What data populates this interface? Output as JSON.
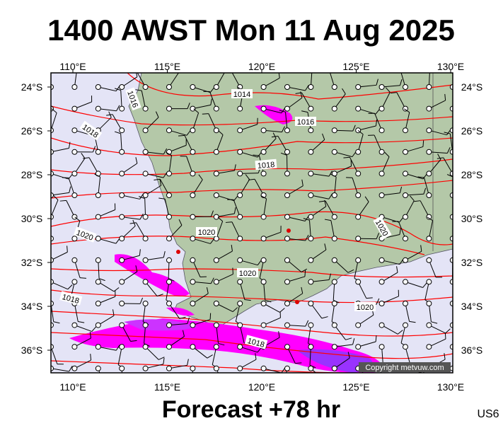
{
  "header": {
    "title": "1400 AWST Mon 11 Aug 2025"
  },
  "map": {
    "lon_ticks": [
      {
        "value": 110,
        "label": "110°E"
      },
      {
        "value": 115,
        "label": "115°E"
      },
      {
        "value": 120,
        "label": "120°E"
      },
      {
        "value": 125,
        "label": "125°E"
      },
      {
        "value": 130,
        "label": "130°E"
      }
    ],
    "lat_ticks": [
      {
        "value": 24,
        "label": "24°S"
      },
      {
        "value": 26,
        "label": "26°S"
      },
      {
        "value": 28,
        "label": "28°S"
      },
      {
        "value": 30,
        "label": "30°S"
      },
      {
        "value": 32,
        "label": "32°S"
      },
      {
        "value": 34,
        "label": "34°S"
      },
      {
        "value": 36,
        "label": "36°S"
      }
    ],
    "isobar_labels": [
      "1016",
      "1018",
      "1014",
      "1016",
      "1018",
      "1020",
      "1020",
      "1020",
      "1020",
      "1018",
      "1020",
      "1018"
    ],
    "copyright": "Copyright metvuw.com"
  },
  "footer": {
    "forecast": "Forecast +78 hr",
    "code": "US6"
  }
}
